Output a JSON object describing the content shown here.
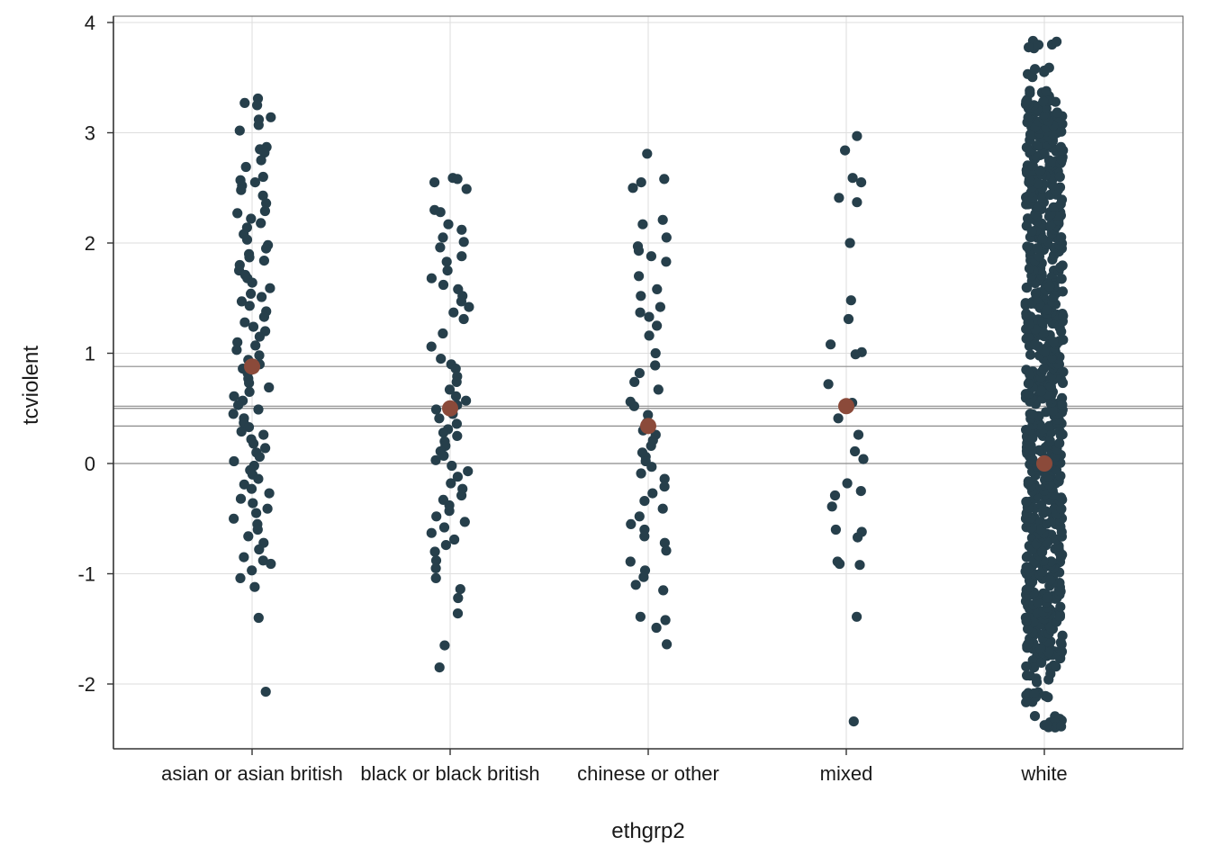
{
  "chart_data": {
    "type": "scatter",
    "title": "",
    "xlabel": "ethgrp2",
    "ylabel": "tcviolent",
    "categories": [
      "asian or asian british",
      "black or black british",
      "chinese or other",
      "mixed",
      "white"
    ],
    "ylim": [
      -2.6,
      4.0
    ],
    "yticks": [
      -2,
      -1,
      0,
      1,
      2,
      3,
      4
    ],
    "ytick_labels": [
      "-2",
      "-1",
      "0",
      "1",
      "2",
      "3",
      "4"
    ],
    "grid": true,
    "legend": "none",
    "colors": {
      "points": "#263f4b",
      "means": "#8b4a3a",
      "mean_lines": "#8a8a8a",
      "grid": "#dedede",
      "frame": "#555555"
    },
    "group_means": [
      {
        "category": "asian or asian british",
        "mean": 0.88
      },
      {
        "category": "black or black british",
        "mean": 0.5
      },
      {
        "category": "chinese or other",
        "mean": 0.34
      },
      {
        "category": "mixed",
        "mean": 0.52
      },
      {
        "category": "white",
        "mean": 0.0
      }
    ],
    "series": [
      {
        "category": "asian or asian british",
        "values": [
          3.31,
          3.27,
          3.25,
          3.14,
          3.12,
          3.07,
          3.02,
          2.87,
          2.85,
          2.82,
          2.75,
          2.69,
          2.6,
          2.57,
          2.55,
          2.52,
          2.48,
          2.43,
          2.36,
          2.29,
          2.27,
          2.22,
          2.18,
          2.14,
          2.08,
          2.03,
          1.98,
          1.95,
          1.9,
          1.87,
          1.84,
          1.8,
          1.75,
          1.71,
          1.68,
          1.64,
          1.59,
          1.54,
          1.51,
          1.47,
          1.43,
          1.38,
          1.33,
          1.28,
          1.24,
          1.2,
          1.15,
          1.1,
          1.07,
          1.03,
          0.98,
          0.94,
          0.9,
          0.86,
          0.82,
          0.77,
          0.73,
          0.69,
          0.65,
          0.61,
          0.57,
          0.53,
          0.49,
          0.45,
          0.41,
          0.37,
          0.33,
          0.29,
          0.26,
          0.22,
          0.18,
          0.14,
          0.1,
          0.06,
          0.02,
          -0.02,
          -0.06,
          -0.1,
          -0.14,
          -0.19,
          -0.23,
          -0.27,
          -0.32,
          -0.36,
          -0.41,
          -0.45,
          -0.5,
          -0.55,
          -0.6,
          -0.66,
          -0.72,
          -0.78,
          -0.85,
          -0.88,
          -0.91,
          -0.97,
          -1.04,
          -1.12,
          -1.4,
          -2.07
        ]
      },
      {
        "category": "black or black british",
        "values": [
          2.59,
          2.58,
          2.55,
          2.49,
          2.3,
          2.28,
          2.17,
          2.12,
          2.05,
          2.01,
          1.96,
          1.88,
          1.83,
          1.75,
          1.68,
          1.62,
          1.58,
          1.52,
          1.47,
          1.42,
          1.37,
          1.31,
          1.18,
          1.06,
          0.95,
          0.9,
          0.86,
          0.79,
          0.74,
          0.67,
          0.61,
          0.57,
          0.53,
          0.49,
          0.45,
          0.41,
          0.36,
          0.31,
          0.28,
          0.25,
          0.2,
          0.16,
          0.11,
          0.07,
          0.03,
          -0.02,
          -0.07,
          -0.12,
          -0.18,
          -0.23,
          -0.29,
          -0.33,
          -0.38,
          -0.43,
          -0.48,
          -0.53,
          -0.58,
          -0.63,
          -0.69,
          -0.74,
          -0.8,
          -0.88,
          -0.95,
          -1.04,
          -1.14,
          -1.22,
          -1.36,
          -1.65,
          -1.85
        ]
      },
      {
        "category": "chinese or other",
        "values": [
          2.81,
          2.58,
          2.55,
          2.5,
          2.21,
          2.17,
          2.05,
          1.97,
          1.93,
          1.88,
          1.83,
          1.7,
          1.58,
          1.52,
          1.42,
          1.37,
          1.33,
          1.25,
          1.16,
          1.0,
          0.89,
          0.82,
          0.74,
          0.67,
          0.56,
          0.52,
          0.44,
          0.37,
          0.3,
          0.26,
          0.21,
          0.16,
          0.1,
          0.06,
          0.02,
          -0.03,
          -0.09,
          -0.14,
          -0.21,
          -0.27,
          -0.34,
          -0.41,
          -0.48,
          -0.55,
          -0.6,
          -0.66,
          -0.72,
          -0.79,
          -0.89,
          -0.97,
          -1.03,
          -1.1,
          -1.15,
          -1.39,
          -1.42,
          -1.49,
          -1.64
        ]
      },
      {
        "category": "mixed",
        "values": [
          2.97,
          2.84,
          2.59,
          2.55,
          2.41,
          2.37,
          2.0,
          1.48,
          1.31,
          1.08,
          1.01,
          0.99,
          0.72,
          0.55,
          0.41,
          0.26,
          0.11,
          0.04,
          -0.18,
          -0.25,
          -0.29,
          -0.39,
          -0.6,
          -0.62,
          -0.67,
          -0.89,
          -0.91,
          -0.92,
          -1.39,
          -2.34
        ]
      },
      {
        "category": "white",
        "values": [
          3.8,
          3.55,
          3.35,
          3.25,
          3.15,
          3.05,
          2.95,
          2.85,
          2.75,
          2.65,
          2.55,
          2.45,
          2.35,
          2.25,
          2.15,
          2.05,
          1.95,
          1.85,
          1.75,
          1.65,
          1.55,
          1.45,
          1.35,
          1.25,
          1.15,
          1.05,
          0.95,
          0.85,
          0.75,
          0.65,
          0.55,
          0.45,
          0.35,
          0.25,
          0.15,
          0.05,
          -0.05,
          -0.15,
          -0.25,
          -0.35,
          -0.45,
          -0.55,
          -0.65,
          -0.75,
          -0.85,
          -0.95,
          -1.05,
          -1.15,
          -1.25,
          -1.35,
          -1.45,
          -1.55,
          -1.65,
          -1.75,
          -1.85,
          -1.95,
          -2.1,
          -2.12,
          -2.34,
          -2.35
        ]
      }
    ]
  }
}
